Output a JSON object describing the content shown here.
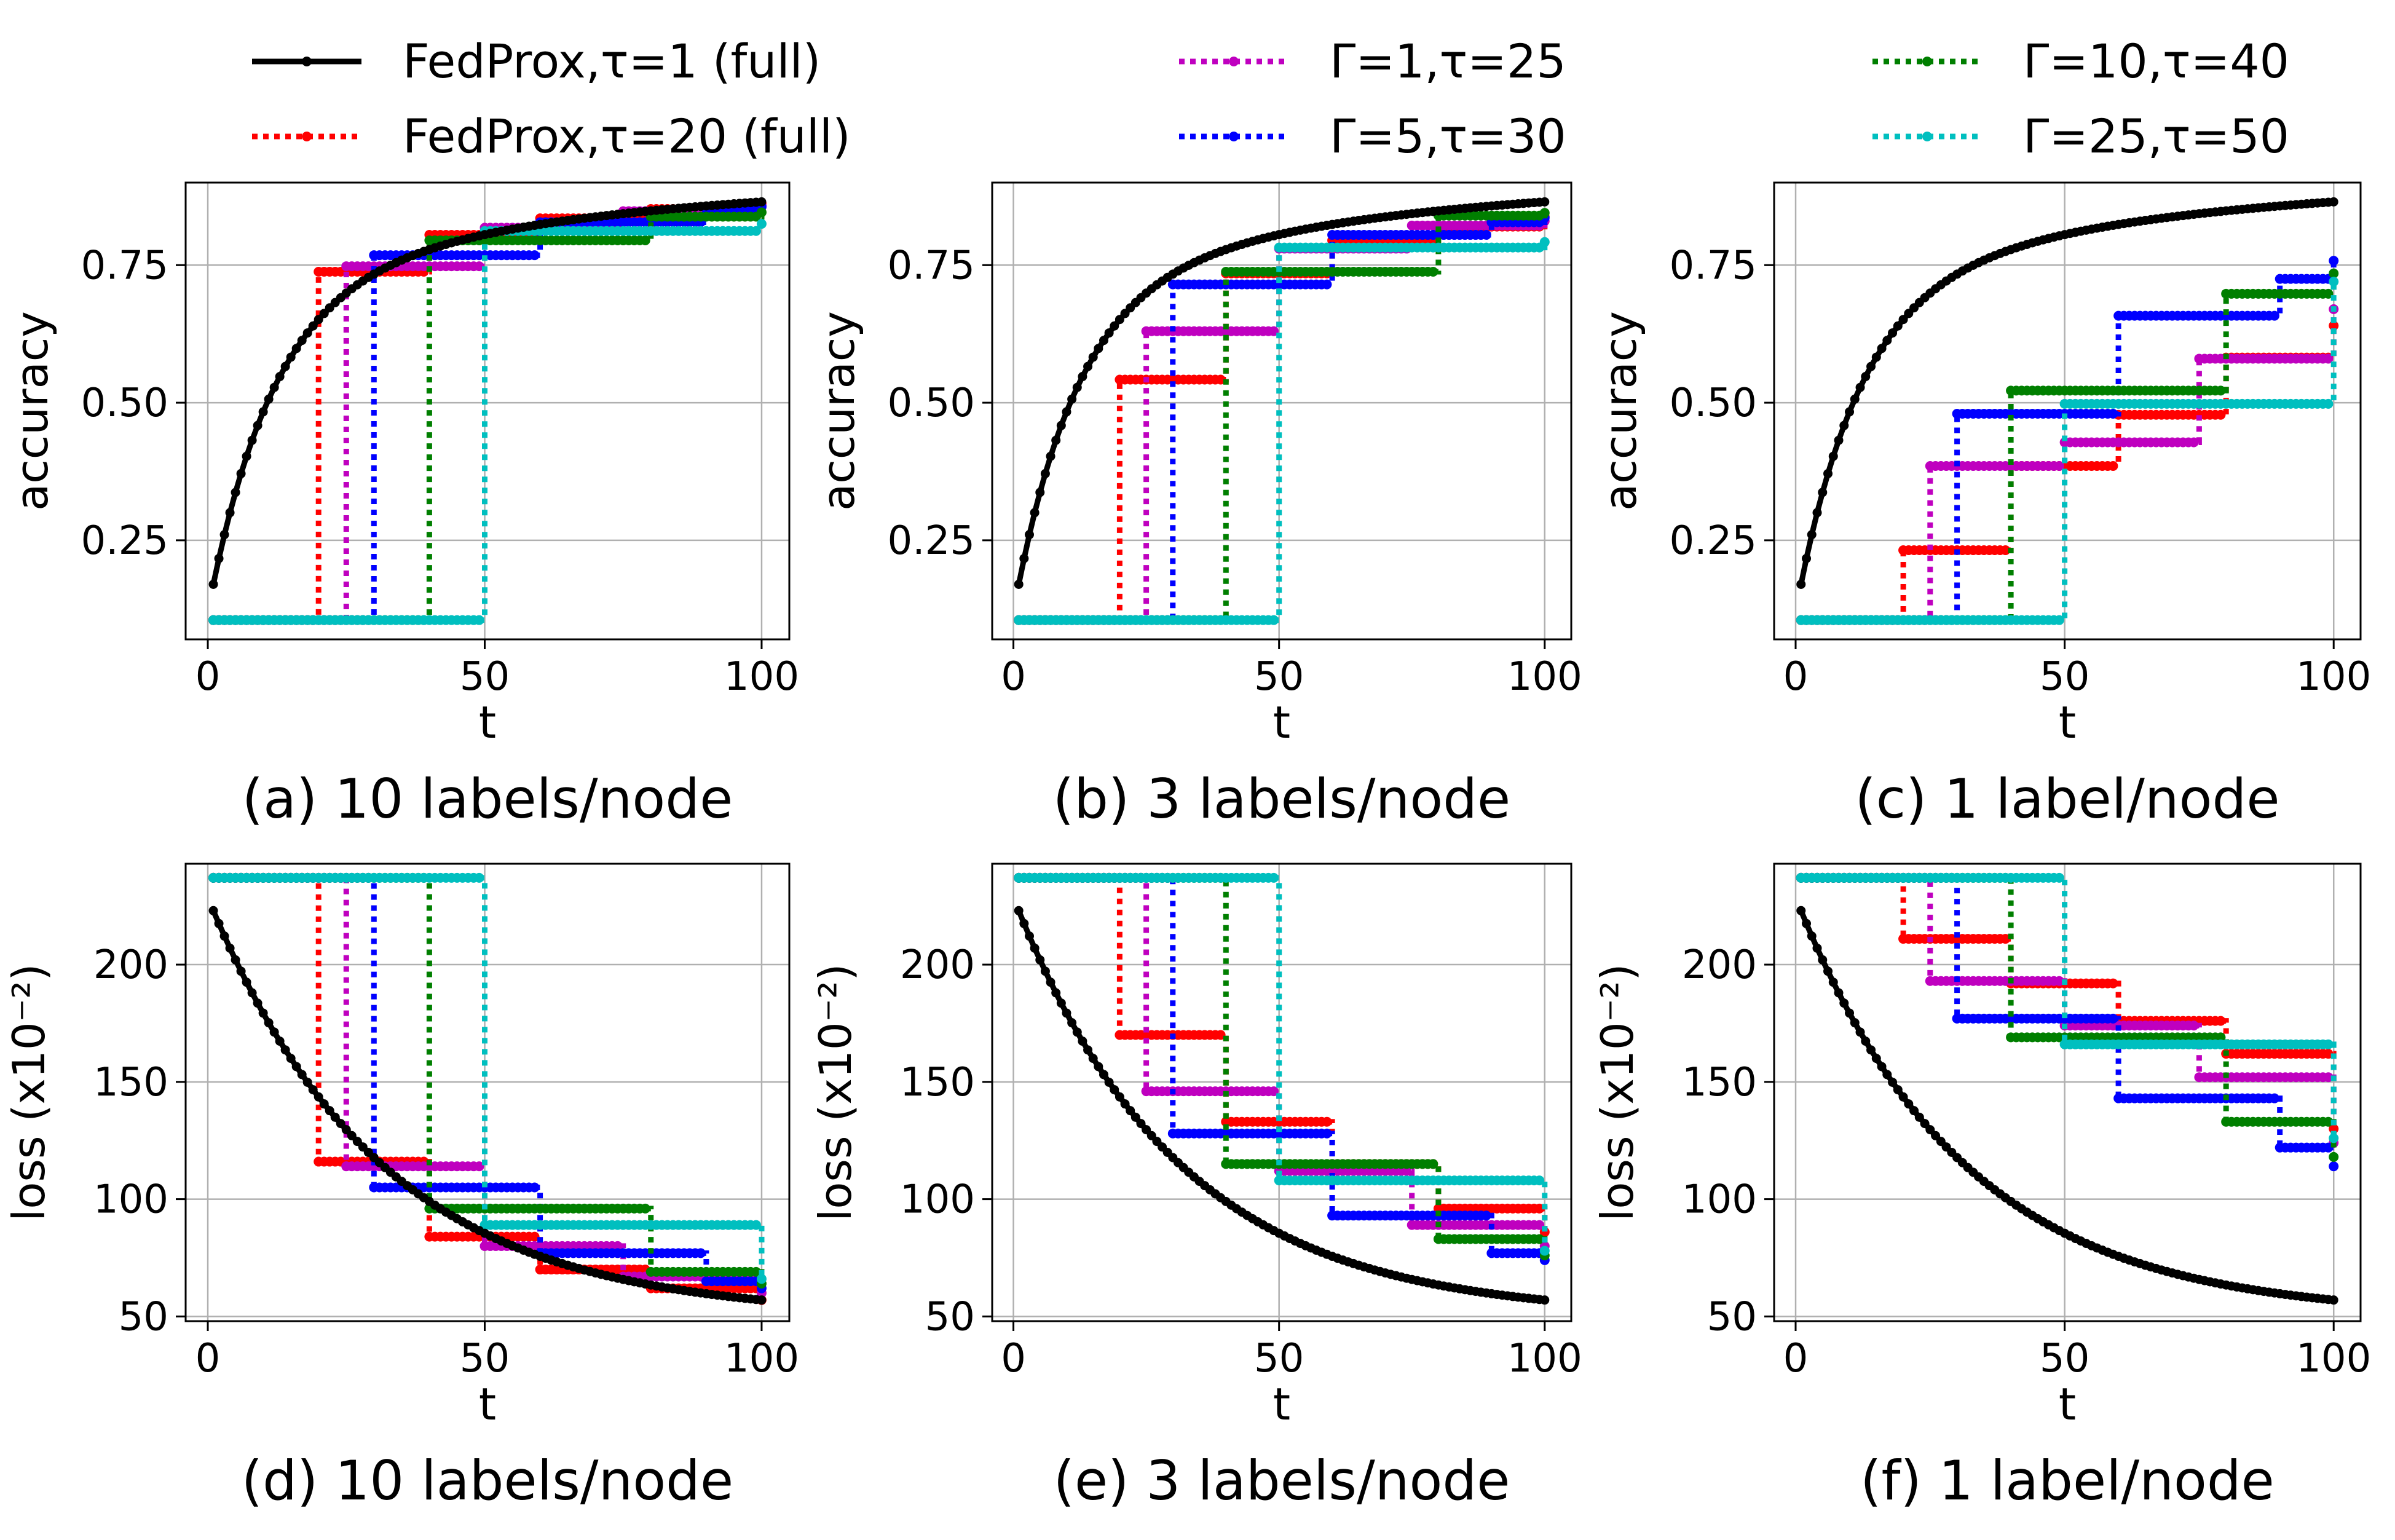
{
  "legend": {
    "placement": "top",
    "entries": [
      {
        "key": "full1",
        "label": "FedProx,τ=1 (full)",
        "color": "#000000",
        "style": "solid"
      },
      {
        "key": "full20",
        "label": "FedProx,τ=20 (full)",
        "color": "#ff0000",
        "style": "dotted"
      },
      {
        "key": "g1",
        "label": "Γ=1,τ=25",
        "color": "#bf00bf",
        "style": "dotted"
      },
      {
        "key": "g5",
        "label": "Γ=5,τ=30",
        "color": "#0000ff",
        "style": "dotted"
      },
      {
        "key": "g10",
        "label": "Γ=10,τ=40",
        "color": "#007f00",
        "style": "dotted"
      },
      {
        "key": "g25",
        "label": "Γ=25,τ=50",
        "color": "#00bfbf",
        "style": "dotted"
      }
    ]
  },
  "chart_data": [
    {
      "id": "a",
      "type": "line",
      "caption": "(a) 10 labels/node",
      "xlabel": "t",
      "ylabel": "accuracy",
      "xlim": [
        -4,
        105
      ],
      "ylim": [
        0.07,
        0.9
      ],
      "xticks": [
        0,
        50,
        100
      ],
      "yticks": [
        0.25,
        0.5,
        0.75
      ],
      "grid": true,
      "baseline": {
        "key": "full1",
        "type": "acc",
        "start": 0.17,
        "end": 0.865
      },
      "series": [
        {
          "key": "full20",
          "start": 0.105,
          "steps": [
            [
              20,
              0.738
            ],
            [
              40,
              0.805
            ],
            [
              60,
              0.835
            ],
            [
              80,
              0.852
            ],
            [
              100,
              0.862
            ]
          ]
        },
        {
          "key": "g1",
          "start": 0.105,
          "steps": [
            [
              25,
              0.748
            ],
            [
              50,
              0.818
            ],
            [
              75,
              0.848
            ],
            [
              100,
              0.858
            ]
          ]
        },
        {
          "key": "g5",
          "start": 0.105,
          "steps": [
            [
              30,
              0.768
            ],
            [
              60,
              0.828
            ],
            [
              90,
              0.852
            ],
            [
              100,
              0.856
            ]
          ]
        },
        {
          "key": "g10",
          "start": 0.105,
          "steps": [
            [
              40,
              0.795
            ],
            [
              80,
              0.838
            ],
            [
              100,
              0.846
            ]
          ]
        },
        {
          "key": "g25",
          "start": 0.105,
          "steps": [
            [
              50,
              0.812
            ],
            [
              100,
              0.825
            ]
          ]
        }
      ]
    },
    {
      "id": "b",
      "type": "line",
      "caption": "(b) 3 labels/node",
      "xlabel": "t",
      "ylabel": "accuracy",
      "xlim": [
        -4,
        105
      ],
      "ylim": [
        0.07,
        0.9
      ],
      "xticks": [
        0,
        50,
        100
      ],
      "yticks": [
        0.25,
        0.5,
        0.75
      ],
      "grid": true,
      "baseline": {
        "key": "full1",
        "type": "acc",
        "start": 0.17,
        "end": 0.865
      },
      "series": [
        {
          "key": "full20",
          "start": 0.105,
          "steps": [
            [
              20,
              0.542
            ],
            [
              40,
              0.735
            ],
            [
              60,
              0.795
            ],
            [
              80,
              0.82
            ],
            [
              100,
              0.838
            ]
          ]
        },
        {
          "key": "g1",
          "start": 0.105,
          "steps": [
            [
              25,
              0.63
            ],
            [
              50,
              0.78
            ],
            [
              75,
              0.822
            ],
            [
              100,
              0.83
            ]
          ]
        },
        {
          "key": "g5",
          "start": 0.105,
          "steps": [
            [
              30,
              0.715
            ],
            [
              60,
              0.805
            ],
            [
              90,
              0.828
            ],
            [
              100,
              0.836
            ]
          ]
        },
        {
          "key": "g10",
          "start": 0.105,
          "steps": [
            [
              40,
              0.738
            ],
            [
              80,
              0.84
            ],
            [
              100,
              0.845
            ]
          ]
        },
        {
          "key": "g25",
          "start": 0.105,
          "steps": [
            [
              50,
              0.782
            ],
            [
              100,
              0.792
            ]
          ]
        }
      ]
    },
    {
      "id": "c",
      "type": "line",
      "caption": "(c) 1 label/node",
      "xlabel": "t",
      "ylabel": "accuracy",
      "xlim": [
        -4,
        105
      ],
      "ylim": [
        0.07,
        0.9
      ],
      "xticks": [
        0,
        50,
        100
      ],
      "yticks": [
        0.25,
        0.5,
        0.75
      ],
      "grid": true,
      "baseline": {
        "key": "full1",
        "type": "acc",
        "start": 0.17,
        "end": 0.865
      },
      "series": [
        {
          "key": "full20",
          "start": 0.105,
          "steps": [
            [
              20,
              0.232
            ],
            [
              40,
              0.385
            ],
            [
              60,
              0.478
            ],
            [
              80,
              0.582
            ],
            [
              100,
              0.64
            ]
          ]
        },
        {
          "key": "g1",
          "start": 0.105,
          "steps": [
            [
              25,
              0.385
            ],
            [
              50,
              0.428
            ],
            [
              75,
              0.58
            ],
            [
              100,
              0.67
            ]
          ]
        },
        {
          "key": "g5",
          "start": 0.105,
          "steps": [
            [
              30,
              0.48
            ],
            [
              60,
              0.658
            ],
            [
              90,
              0.725
            ],
            [
              100,
              0.758
            ]
          ]
        },
        {
          "key": "g10",
          "start": 0.105,
          "steps": [
            [
              40,
              0.522
            ],
            [
              80,
              0.698
            ],
            [
              100,
              0.735
            ]
          ]
        },
        {
          "key": "g25",
          "start": 0.105,
          "steps": [
            [
              50,
              0.498
            ],
            [
              100,
              0.72
            ]
          ]
        }
      ]
    },
    {
      "id": "d",
      "type": "line",
      "caption": "(d) 10 labels/node",
      "xlabel": "t",
      "ylabel": "loss (x10⁻²)",
      "xlim": [
        -4,
        105
      ],
      "ylim": [
        48,
        243
      ],
      "xticks": [
        0,
        50,
        100
      ],
      "yticks": [
        50,
        100,
        150,
        200
      ],
      "grid": true,
      "baseline": {
        "key": "full1",
        "type": "loss",
        "start": 223,
        "end": 57
      },
      "series": [
        {
          "key": "full20",
          "start": 237,
          "steps": [
            [
              20,
              116
            ],
            [
              40,
              84
            ],
            [
              60,
              70
            ],
            [
              80,
              62
            ],
            [
              100,
              57
            ]
          ]
        },
        {
          "key": "g1",
          "start": 237,
          "steps": [
            [
              25,
              114
            ],
            [
              50,
              80
            ],
            [
              75,
              67
            ],
            [
              100,
              60
            ]
          ]
        },
        {
          "key": "g5",
          "start": 237,
          "steps": [
            [
              30,
              105
            ],
            [
              60,
              77
            ],
            [
              90,
              65
            ],
            [
              100,
              62
            ]
          ]
        },
        {
          "key": "g10",
          "start": 237,
          "steps": [
            [
              40,
              96
            ],
            [
              80,
              69
            ],
            [
              100,
              64
            ]
          ]
        },
        {
          "key": "g25",
          "start": 237,
          "steps": [
            [
              50,
              89
            ],
            [
              100,
              66
            ]
          ]
        }
      ]
    },
    {
      "id": "e",
      "type": "line",
      "caption": "(e) 3 labels/node",
      "xlabel": "t",
      "ylabel": "loss (x10⁻²)",
      "xlim": [
        -4,
        105
      ],
      "ylim": [
        48,
        243
      ],
      "xticks": [
        0,
        50,
        100
      ],
      "yticks": [
        50,
        100,
        150,
        200
      ],
      "grid": true,
      "baseline": {
        "key": "full1",
        "type": "loss",
        "start": 223,
        "end": 57
      },
      "series": [
        {
          "key": "full20",
          "start": 237,
          "steps": [
            [
              20,
              170
            ],
            [
              40,
              133
            ],
            [
              60,
              115
            ],
            [
              80,
              96
            ],
            [
              100,
              86
            ]
          ]
        },
        {
          "key": "g1",
          "start": 237,
          "steps": [
            [
              25,
              146
            ],
            [
              50,
              112
            ],
            [
              75,
              89
            ],
            [
              100,
              80
            ]
          ]
        },
        {
          "key": "g5",
          "start": 237,
          "steps": [
            [
              30,
              128
            ],
            [
              60,
              93
            ],
            [
              90,
              77
            ],
            [
              100,
              74
            ]
          ]
        },
        {
          "key": "g10",
          "start": 237,
          "steps": [
            [
              40,
              115
            ],
            [
              80,
              83
            ],
            [
              100,
              76
            ]
          ]
        },
        {
          "key": "g25",
          "start": 237,
          "steps": [
            [
              50,
              108
            ],
            [
              100,
              78
            ]
          ]
        }
      ]
    },
    {
      "id": "f",
      "type": "line",
      "caption": "(f) 1 label/node",
      "xlabel": "t",
      "ylabel": "loss (x10⁻²)",
      "xlim": [
        -4,
        105
      ],
      "ylim": [
        48,
        243
      ],
      "xticks": [
        0,
        50,
        100
      ],
      "yticks": [
        50,
        100,
        150,
        200
      ],
      "grid": true,
      "baseline": {
        "key": "full1",
        "type": "loss",
        "start": 223,
        "end": 57
      },
      "series": [
        {
          "key": "full20",
          "start": 237,
          "steps": [
            [
              20,
              211
            ],
            [
              40,
              192
            ],
            [
              60,
              176
            ],
            [
              80,
              162
            ],
            [
              100,
              130
            ]
          ]
        },
        {
          "key": "g1",
          "start": 237,
          "steps": [
            [
              25,
              193
            ],
            [
              50,
              174
            ],
            [
              75,
              152
            ],
            [
              100,
              124
            ]
          ]
        },
        {
          "key": "g5",
          "start": 237,
          "steps": [
            [
              30,
              177
            ],
            [
              60,
              143
            ],
            [
              90,
              122
            ],
            [
              100,
              114
            ]
          ]
        },
        {
          "key": "g10",
          "start": 237,
          "steps": [
            [
              40,
              169
            ],
            [
              80,
              133
            ],
            [
              100,
              118
            ]
          ]
        },
        {
          "key": "g25",
          "start": 237,
          "steps": [
            [
              50,
              166
            ],
            [
              100,
              126
            ]
          ]
        }
      ]
    }
  ]
}
